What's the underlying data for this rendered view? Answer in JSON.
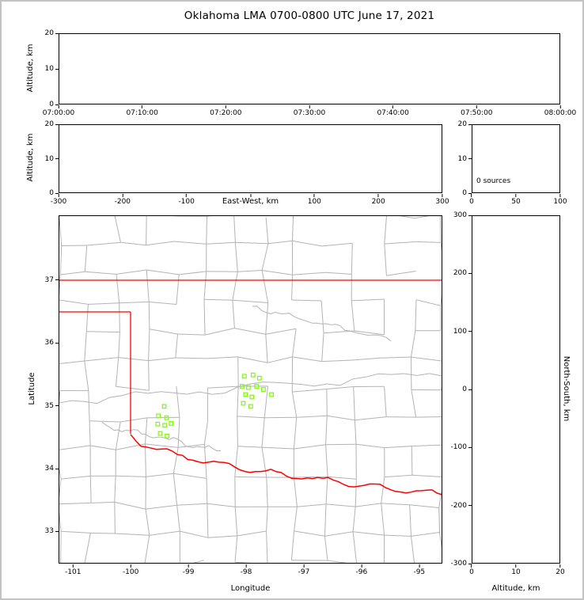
{
  "title": "Oklahoma LMA 0700-0800 UTC June 17, 2021",
  "colors": {
    "state_border": "#ff0000",
    "county_border": "#b3b3b3",
    "marker": "#7cfc00",
    "frame": "#c3c3c3",
    "axis": "#000000"
  },
  "panels": {
    "time_height": {
      "ylabel": "Altitude, km",
      "y_ticks": [
        "20",
        "10",
        "0"
      ],
      "x_ticks": [
        "07:00:00",
        "07:10:00",
        "07:20:00",
        "07:30:00",
        "07:40:00",
        "07:50:00",
        "08:00:00"
      ]
    },
    "ew_altitude": {
      "ylabel": "Altitude, km",
      "xlabel": "East-West, km",
      "y_ticks": [
        "20",
        "10",
        "0"
      ],
      "x_ticks": [
        "-300",
        "-200",
        "-100",
        "",
        "100",
        "200",
        "300"
      ]
    },
    "altitude_histogram": {
      "y_ticks": [
        "20",
        "10",
        "0"
      ],
      "x_ticks": [
        "0",
        "50",
        "100"
      ],
      "annotation": "0 sources"
    },
    "plan_view": {
      "ylabel": "Latitude",
      "xlabel": "Longitude",
      "y_ticks": [
        "37",
        "36",
        "35",
        "34",
        "33"
      ],
      "x_ticks": [
        "-101",
        "-100",
        "-99",
        "-98",
        "-97",
        "-96",
        "-95"
      ]
    },
    "ns_altitude": {
      "right_label": "North-South, km",
      "xlabel": "Altitude, km",
      "y_ticks": [
        "300",
        "200",
        "100",
        "0",
        "-100",
        "-200",
        "-300"
      ],
      "x_ticks": [
        "0",
        "10",
        "20"
      ]
    }
  },
  "chart_data": [
    {
      "name": "time_height",
      "type": "scatter",
      "ylabel": "Altitude, km",
      "ylim": [
        0,
        20
      ],
      "x_ticks": [
        "07:00:00",
        "07:10:00",
        "07:20:00",
        "07:30:00",
        "07:40:00",
        "07:50:00",
        "08:00:00"
      ],
      "points": []
    },
    {
      "name": "ew_altitude",
      "type": "scatter",
      "xlabel": "East-West, km",
      "xlim": [
        -300,
        300
      ],
      "ylim": [
        0,
        20
      ],
      "points": []
    },
    {
      "name": "alt_histogram",
      "type": "bar",
      "annotation": "0 sources",
      "xlim": [
        0,
        100
      ],
      "ylim": [
        0,
        20
      ],
      "values": []
    },
    {
      "name": "plan_view",
      "type": "scatter",
      "title": "Oklahoma LMA 0700-0800 UTC June 17, 2021",
      "xlabel": "Longitude",
      "ylabel": "Latitude",
      "xlim": [
        -101.25,
        -94.6
      ],
      "ylim": [
        32.49,
        38.03
      ],
      "marker": "open-square",
      "marker_color": "#7cfc00",
      "points": [
        [
          -99.42,
          34.99
        ],
        [
          -99.52,
          34.84
        ],
        [
          -99.38,
          34.81
        ],
        [
          -99.53,
          34.71
        ],
        [
          -99.41,
          34.69
        ],
        [
          -99.3,
          34.72
        ],
        [
          -99.49,
          34.56
        ],
        [
          -99.37,
          34.52
        ],
        [
          -98.03,
          35.47
        ],
        [
          -97.88,
          35.49
        ],
        [
          -97.77,
          35.44
        ],
        [
          -98.07,
          35.31
        ],
        [
          -97.96,
          35.29
        ],
        [
          -97.82,
          35.31
        ],
        [
          -97.7,
          35.26
        ],
        [
          -98.01,
          35.18
        ],
        [
          -97.9,
          35.14
        ],
        [
          -98.05,
          35.04
        ],
        [
          -97.92,
          34.99
        ],
        [
          -97.56,
          35.18
        ]
      ]
    },
    {
      "name": "ns_altitude",
      "type": "scatter",
      "xlabel": "Altitude, km",
      "ylabel": "North-South, km",
      "xlim": [
        0,
        20
      ],
      "ylim": [
        -300,
        300
      ],
      "points": []
    }
  ]
}
